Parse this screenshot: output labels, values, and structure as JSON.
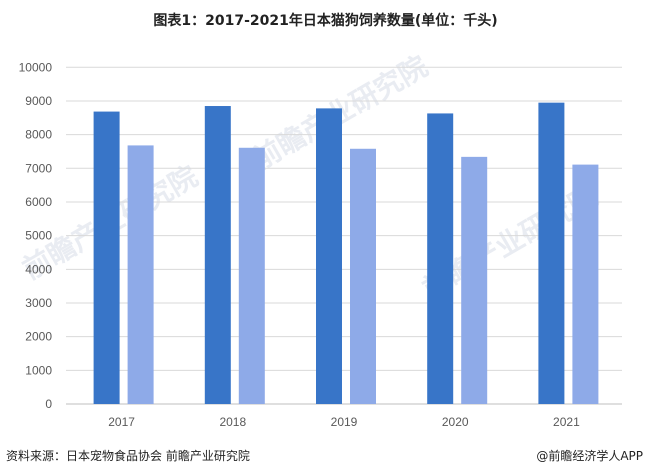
{
  "title": "图表1：2017-2021年日本猫狗饲养数量(单位：千头)",
  "footer": {
    "source": "资料来源：日本宠物食品协会 前瞻产业研究院",
    "credit": "@前瞻经济学人APP"
  },
  "watermark": "前瞻产业研究院",
  "chart_data": {
    "type": "bar",
    "title": "图表1：2017-2021年日本猫狗饲养数量(单位：千头)",
    "categories": [
      "2017",
      "2018",
      "2019",
      "2020",
      "2021"
    ],
    "series": [
      {
        "values": [
          8685,
          8850,
          8780,
          8630,
          8950
        ],
        "color": "#3875C8"
      },
      {
        "values": [
          7680,
          7610,
          7580,
          7340,
          7110
        ],
        "color": "#8EAAE8"
      }
    ],
    "ylim": [
      0,
      10000
    ],
    "yticks": [
      "0",
      "1000",
      "2000",
      "3000",
      "4000",
      "5000",
      "6000",
      "7000",
      "8000",
      "9000",
      "10000"
    ],
    "grid": true,
    "legend": "none"
  }
}
